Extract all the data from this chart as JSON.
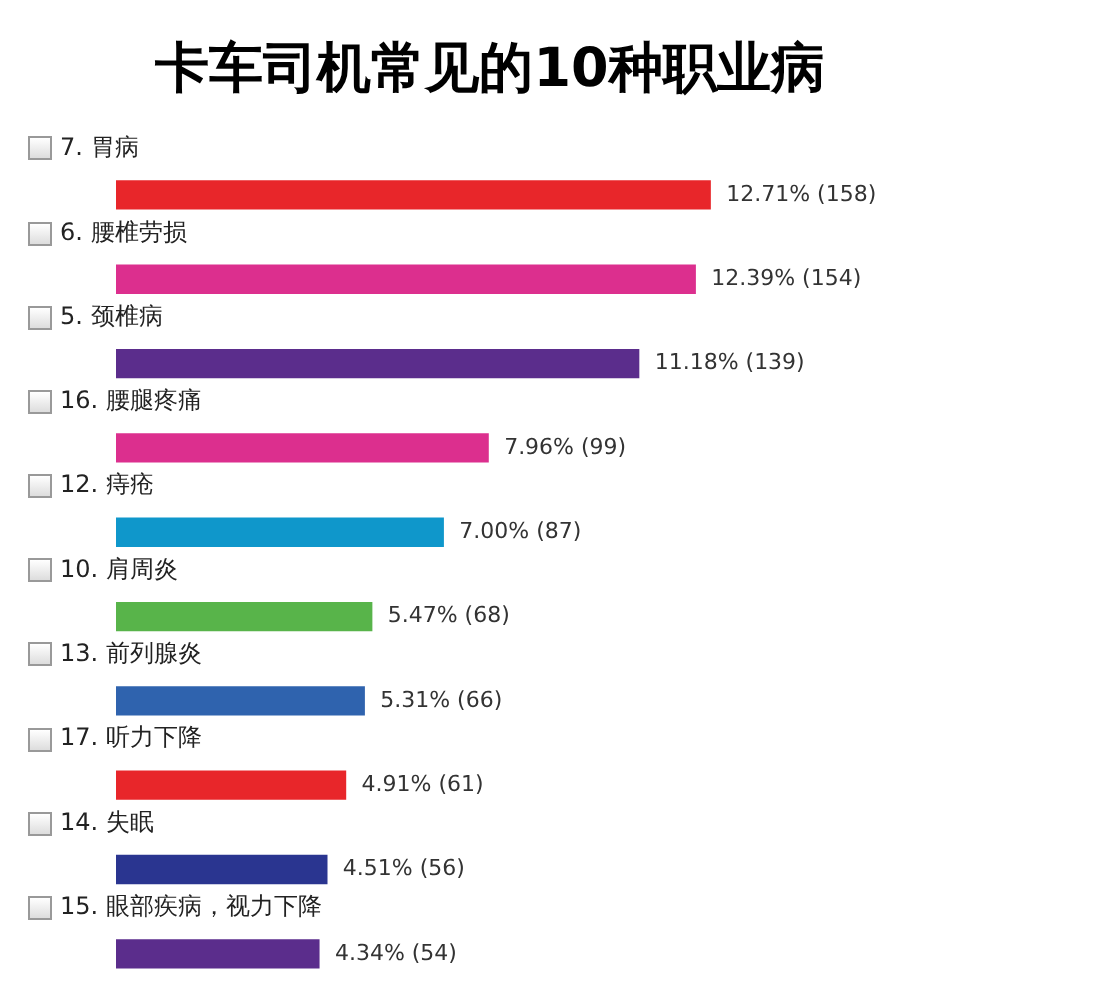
{
  "chart_data": {
    "type": "bar",
    "orientation": "horizontal",
    "title": "卡车司机常见的10种职业病",
    "categories": [
      "7. 胃病",
      "6. 腰椎劳损",
      "5. 颈椎病",
      "16. 腰腿疼痛",
      "12. 痔疮",
      "10. 肩周炎",
      "13. 前列腺炎",
      "17. 听力下降",
      "14. 失眠",
      "15. 眼部疾病，视力下降"
    ],
    "values": [
      12.71,
      12.39,
      11.18,
      7.96,
      7.0,
      5.47,
      5.31,
      4.91,
      4.51,
      4.34
    ],
    "colors": [
      "#e8262a",
      "#dc2f8e",
      "#5b2d8c",
      "#dc2f8e",
      "#0f97cb",
      "#58b44a",
      "#2f63ae",
      "#e8262a",
      "#2a3590",
      "#5b2d8c"
    ],
    "value_labels": [
      "12.71% (158)",
      "12.39% (154)",
      "11.18% (139)",
      "7.96% (99)",
      "7.00% (87)",
      "5.47% (68)",
      "5.31% (66)",
      "4.91% (61)",
      "4.51% (56)",
      "4.34% (54)"
    ],
    "legend": false
  }
}
